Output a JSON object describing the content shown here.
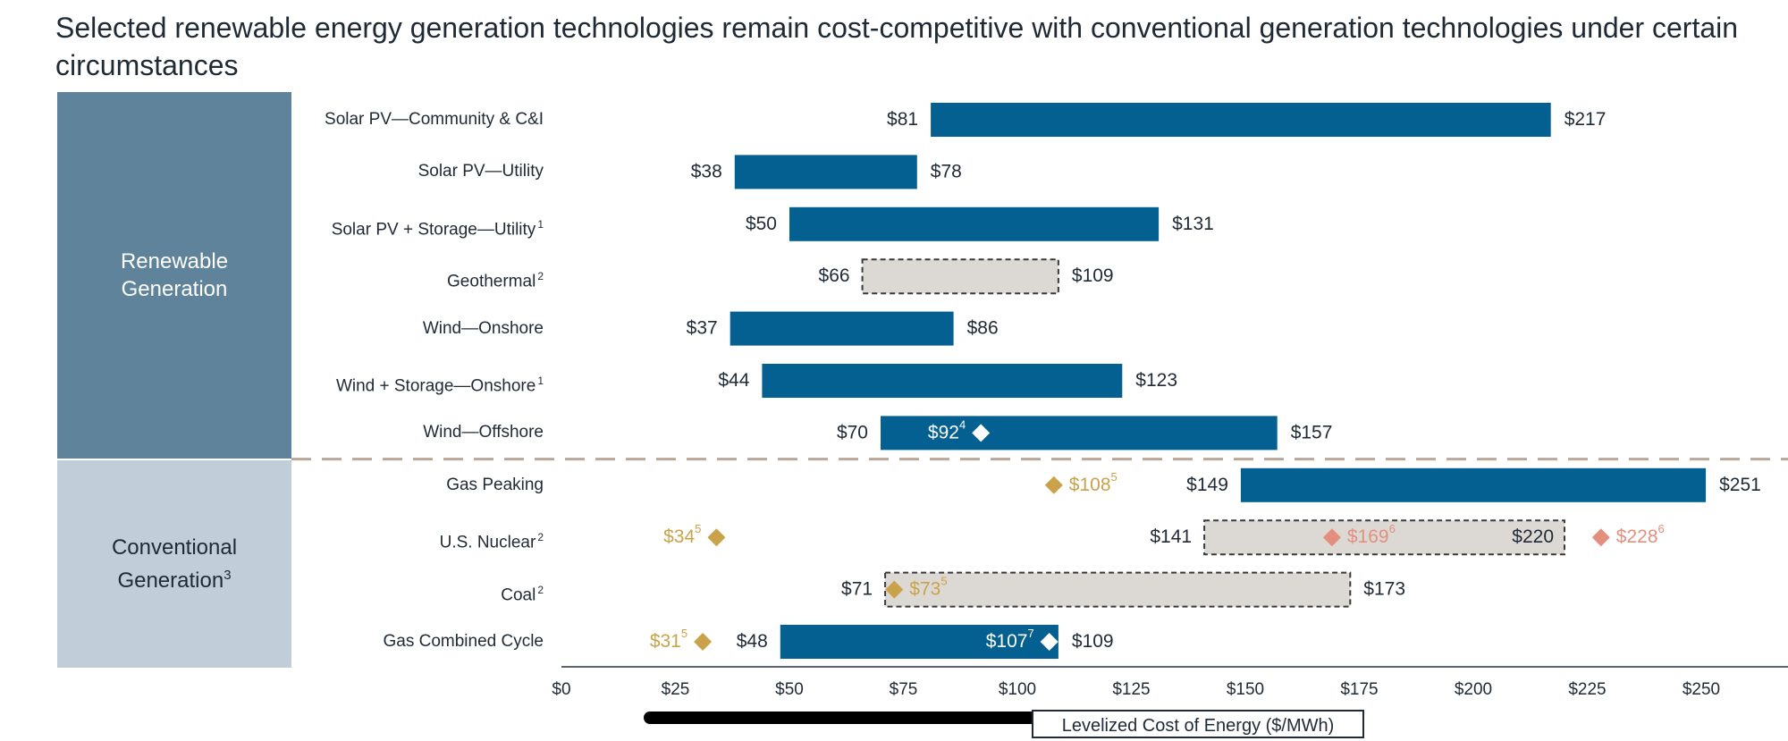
{
  "title": "Selected renewable energy generation technologies remain cost-competitive with conventional generation technologies under certain circumstances",
  "groups": {
    "renewable": [
      "Renewable",
      "Generation"
    ],
    "conventional": [
      "Conventional",
      "Generation"
    ],
    "conventional_sup": "3"
  },
  "colors": {
    "bar": "#036090",
    "neutral_fill": "#dcd9d5",
    "gold": "#c9a24a",
    "salmon": "#e48f7e",
    "divider": "#b8a89a"
  },
  "chart_data": {
    "type": "bar",
    "orientation": "horizontal-range",
    "title": "Selected renewable energy generation technologies remain cost-competitive with conventional generation technologies under certain circumstances",
    "xlabel": "Levelized Cost of Energy ($/MWh)",
    "xlim": [
      0,
      270
    ],
    "x_ticks": [
      0,
      25,
      50,
      75,
      100,
      125,
      150,
      175,
      200,
      225,
      250
    ],
    "x_tick_labels": [
      "$0",
      "$25",
      "$50",
      "$75",
      "$100",
      "$125",
      "$150",
      "$175",
      "$200",
      "$225",
      "$250"
    ],
    "categories": [
      {
        "name": "Solar PV—Community & C&I",
        "sup": "",
        "group": "Renewable Generation",
        "low": 81,
        "high": 217,
        "style": "solid",
        "low_label": "$81",
        "high_label": "$217",
        "high_label_inside": false
      },
      {
        "name": "Solar PV—Utility",
        "sup": "",
        "group": "Renewable Generation",
        "low": 38,
        "high": 78,
        "style": "solid",
        "low_label": "$38",
        "high_label": "$78",
        "high_label_inside": false
      },
      {
        "name": "Solar PV + Storage—Utility",
        "sup": "1",
        "group": "Renewable Generation",
        "low": 50,
        "high": 131,
        "style": "solid",
        "low_label": "$50",
        "high_label": "$131",
        "high_label_inside": false
      },
      {
        "name": "Geothermal",
        "sup": "2",
        "group": "Renewable Generation",
        "low": 66,
        "high": 109,
        "style": "dashed",
        "low_label": "$66",
        "high_label": "$109",
        "high_label_inside": false
      },
      {
        "name": "Wind—Onshore",
        "sup": "",
        "group": "Renewable Generation",
        "low": 37,
        "high": 86,
        "style": "solid",
        "low_label": "$37",
        "high_label": "$86",
        "high_label_inside": false
      },
      {
        "name": "Wind + Storage—Onshore",
        "sup": "1",
        "group": "Renewable Generation",
        "low": 44,
        "high": 123,
        "style": "solid",
        "low_label": "$44",
        "high_label": "$123",
        "high_label_inside": false
      },
      {
        "name": "Wind—Offshore",
        "sup": "",
        "group": "Renewable Generation",
        "low": 70,
        "high": 157,
        "style": "solid",
        "low_label": "$70",
        "high_label": "$157",
        "high_label_inside": false
      },
      {
        "name": "Gas Peaking",
        "sup": "",
        "group": "Conventional Generation",
        "low": 149,
        "high": 251,
        "style": "solid",
        "low_label": "$149",
        "high_label": "$251",
        "high_label_inside": false
      },
      {
        "name": "U.S. Nuclear",
        "sup": "2",
        "group": "Conventional Generation",
        "low": 141,
        "high": 220,
        "style": "dashed",
        "low_label": "$141",
        "high_label": "$220",
        "high_label_inside": true
      },
      {
        "name": "Coal",
        "sup": "2",
        "group": "Conventional Generation",
        "low": 71,
        "high": 173,
        "style": "dashed",
        "low_label": "$71",
        "high_label": "$173",
        "high_label_inside": false
      },
      {
        "name": "Gas Combined Cycle",
        "sup": "",
        "group": "Conventional Generation",
        "low": 48,
        "high": 109,
        "style": "solid",
        "low_label": "$48",
        "high_label": "$109",
        "high_label_inside": false
      }
    ],
    "markers": [
      {
        "row": 6,
        "value": 92,
        "label": "$92",
        "sup": "4",
        "color": "white",
        "label_side": "left"
      },
      {
        "row": 7,
        "value": 108,
        "label": "$108",
        "sup": "5",
        "color": "gold",
        "label_side": "right"
      },
      {
        "row": 8,
        "value": 34,
        "label": "$34",
        "sup": "5",
        "color": "gold",
        "label_side": "left"
      },
      {
        "row": 8,
        "value": 169,
        "label": "$169",
        "sup": "6",
        "color": "salmon",
        "label_side": "right"
      },
      {
        "row": 8,
        "value": 228,
        "label": "$228",
        "sup": "6",
        "color": "salmon",
        "label_side": "right"
      },
      {
        "row": 9,
        "value": 73,
        "label": "$73",
        "sup": "5",
        "color": "gold",
        "label_side": "right"
      },
      {
        "row": 10,
        "value": 31,
        "label": "$31",
        "sup": "5",
        "color": "gold",
        "label_side": "left"
      },
      {
        "row": 10,
        "value": 107,
        "label": "$107",
        "sup": "7",
        "color": "white",
        "label_side": "left"
      }
    ],
    "divider_after_row": 6
  }
}
